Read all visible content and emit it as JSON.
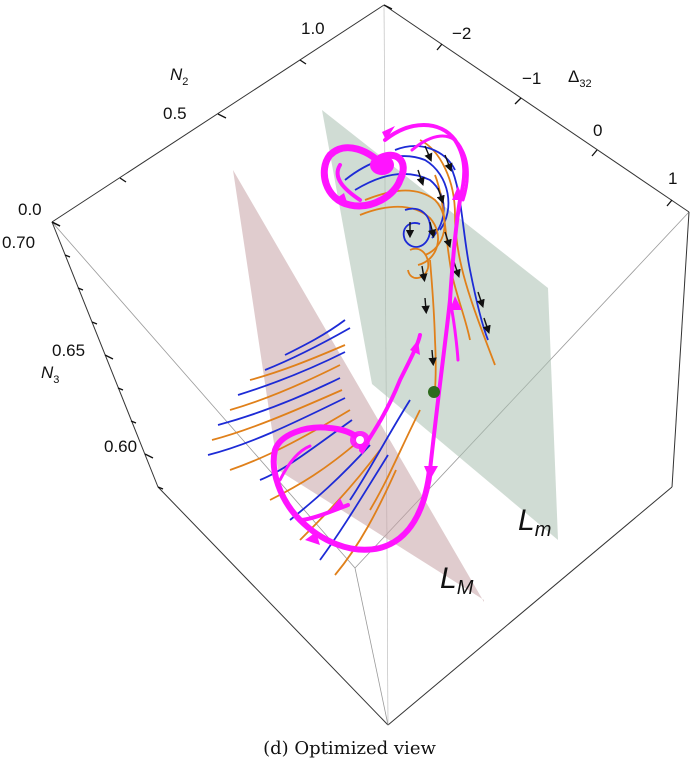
{
  "figure": {
    "caption": "(d) Optimized view",
    "axes": {
      "n2": {
        "name": "N",
        "sub": "2",
        "ticks": [
          "0.0",
          "0.5",
          "1.0"
        ]
      },
      "n3": {
        "name": "N",
        "sub": "3",
        "ticks": [
          "0.70",
          "0.65",
          "0.60"
        ]
      },
      "d32": {
        "name": "Δ",
        "sub": "32",
        "ticks": [
          "−2",
          "−1",
          "0",
          "1"
        ]
      }
    },
    "planes": {
      "lm_small": {
        "name": "L",
        "sub": "m",
        "color": "#a9bfb0"
      },
      "lm_big": {
        "name": "L",
        "sub": "M",
        "color": "#c7a3a6"
      }
    },
    "colors": {
      "separatrix": "#ff14ff",
      "trajectory_blue": "#1d2bd6",
      "trajectory_orange": "#e0801a",
      "arrow": "#111111",
      "fixed_point": "#2e6b1e"
    }
  }
}
